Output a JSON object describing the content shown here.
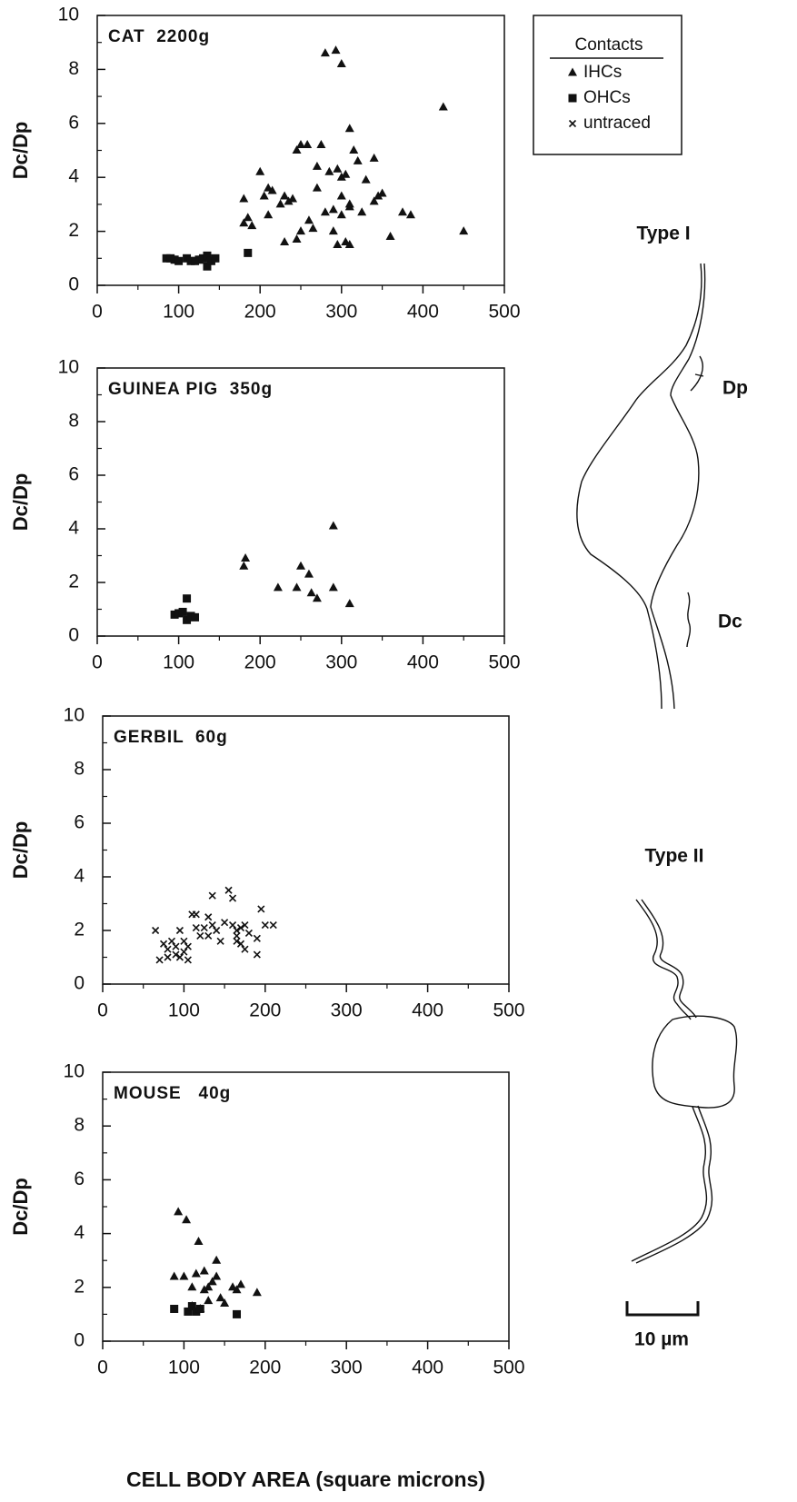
{
  "chart_data": [
    {
      "type": "scatter",
      "title": "CAT  2200g",
      "ylabel": "Dc/Dp",
      "xlim": [
        0,
        500
      ],
      "xticks": [
        0,
        100,
        200,
        300,
        400,
        500
      ],
      "xminorticks": [
        50,
        150,
        250,
        350,
        450
      ],
      "ylim": [
        0,
        10
      ],
      "yticks": [
        0,
        2,
        4,
        6,
        8,
        10
      ],
      "yminorticks": [
        1,
        3,
        5,
        7,
        9
      ],
      "series": [
        {
          "name": "IHCs",
          "marker": "triangle",
          "color": "#111111",
          "x": [
            280,
            293,
            300,
            425,
            310,
            250,
            258,
            245,
            275,
            315,
            340,
            200,
            295,
            305,
            285,
            300,
            330,
            320,
            270,
            210,
            215,
            205,
            180,
            230,
            235,
            240,
            225,
            270,
            300,
            310,
            345,
            350,
            375,
            385,
            340,
            290,
            280,
            300,
            310,
            185,
            190,
            210,
            260,
            265,
            250,
            245,
            230,
            290,
            295,
            305,
            310,
            360,
            450,
            325,
            180
          ],
          "values": [
            8.6,
            8.7,
            8.2,
            6.6,
            5.8,
            5.2,
            5.2,
            5.0,
            5.2,
            5.0,
            4.7,
            4.2,
            4.3,
            4.1,
            4.2,
            4.0,
            3.9,
            4.6,
            4.4,
            3.6,
            3.5,
            3.3,
            3.2,
            3.3,
            3.1,
            3.2,
            3.0,
            3.6,
            3.3,
            3.0,
            3.3,
            3.4,
            2.7,
            2.6,
            3.1,
            2.8,
            2.7,
            2.6,
            2.9,
            2.5,
            2.2,
            2.6,
            2.4,
            2.1,
            2.0,
            1.7,
            1.6,
            2.0,
            1.5,
            1.6,
            1.5,
            1.8,
            2.0,
            2.7,
            2.3
          ]
        },
        {
          "name": "OHCs",
          "marker": "square",
          "color": "#111111",
          "x": [
            85,
            90,
            95,
            100,
            110,
            115,
            120,
            125,
            130,
            135,
            135,
            140,
            145,
            185
          ],
          "values": [
            1.0,
            1.0,
            0.95,
            0.9,
            1.0,
            0.9,
            0.9,
            0.95,
            1.0,
            0.7,
            1.1,
            0.9,
            1.0,
            1.2
          ]
        }
      ]
    },
    {
      "type": "scatter",
      "title": "GUINEA PIG  350g",
      "ylabel": "Dc/Dp",
      "xlim": [
        0,
        500
      ],
      "xticks": [
        0,
        100,
        200,
        300,
        400,
        500
      ],
      "xminorticks": [
        50,
        150,
        250,
        350,
        450
      ],
      "ylim": [
        0,
        10
      ],
      "yticks": [
        0,
        2,
        4,
        6,
        8,
        10
      ],
      "yminorticks": [
        1,
        3,
        5,
        7,
        9
      ],
      "series": [
        {
          "name": "IHCs",
          "marker": "triangle",
          "color": "#111111",
          "x": [
            180,
            182,
            222,
            245,
            250,
            260,
            263,
            270,
            290,
            290,
            310
          ],
          "values": [
            2.6,
            2.9,
            1.8,
            1.8,
            2.6,
            2.3,
            1.6,
            1.4,
            1.8,
            4.1,
            1.2
          ]
        },
        {
          "name": "OHCs",
          "marker": "square",
          "color": "#111111",
          "x": [
            95,
            100,
            105,
            110,
            110,
            115,
            120
          ],
          "values": [
            0.8,
            0.85,
            0.9,
            1.4,
            0.6,
            0.75,
            0.7
          ]
        }
      ]
    },
    {
      "type": "scatter",
      "title": "GERBIL  60g",
      "ylabel": "Dc/Dp",
      "xlim": [
        0,
        500
      ],
      "xticks": [
        0,
        100,
        200,
        300,
        400,
        500
      ],
      "xminorticks": [
        50,
        150,
        250,
        350,
        450
      ],
      "ylim": [
        0,
        10
      ],
      "yticks": [
        0,
        2,
        4,
        6,
        8,
        10
      ],
      "yminorticks": [
        1,
        3,
        5,
        7,
        9
      ],
      "series": [
        {
          "name": "untraced",
          "marker": "cross",
          "color": "#111111",
          "x": [
            65,
            70,
            75,
            80,
            80,
            85,
            90,
            90,
            95,
            95,
            100,
            100,
            105,
            105,
            110,
            115,
            115,
            120,
            125,
            130,
            130,
            135,
            135,
            140,
            145,
            150,
            155,
            160,
            160,
            165,
            165,
            165,
            170,
            170,
            175,
            175,
            180,
            190,
            190,
            195,
            200,
            210
          ],
          "values": [
            2.0,
            0.9,
            1.5,
            1.3,
            1.0,
            1.6,
            1.1,
            1.4,
            1.0,
            2.0,
            1.6,
            1.2,
            0.9,
            1.4,
            2.6,
            2.1,
            2.6,
            1.8,
            2.1,
            2.5,
            1.8,
            3.3,
            2.2,
            2.0,
            1.6,
            2.3,
            3.5,
            3.2,
            2.2,
            1.8,
            2.0,
            1.6,
            2.1,
            1.5,
            2.2,
            1.3,
            1.9,
            1.7,
            1.1,
            2.8,
            2.2,
            2.2
          ]
        }
      ]
    },
    {
      "type": "scatter",
      "title": "MOUSE   40g",
      "ylabel": "Dc/Dp",
      "xlabel": "CELL BODY AREA (square microns)",
      "xlim": [
        0,
        500
      ],
      "xticks": [
        0,
        100,
        200,
        300,
        400,
        500
      ],
      "xminorticks": [
        50,
        150,
        250,
        350,
        450
      ],
      "ylim": [
        0,
        10
      ],
      "yticks": [
        0,
        2,
        4,
        6,
        8,
        10
      ],
      "yminorticks": [
        1,
        3,
        5,
        7,
        9
      ],
      "series": [
        {
          "name": "IHCs",
          "marker": "triangle",
          "color": "#111111",
          "x": [
            93,
            103,
            118,
            88,
            100,
            110,
            115,
            125,
            130,
            135,
            140,
            140,
            125,
            145,
            150,
            160,
            165,
            170,
            190,
            110,
            120,
            130
          ],
          "values": [
            4.8,
            4.5,
            3.7,
            2.4,
            2.4,
            2.0,
            2.5,
            2.6,
            2.0,
            2.2,
            3.0,
            2.4,
            1.9,
            1.6,
            1.4,
            2.0,
            1.9,
            2.1,
            1.8,
            1.3,
            1.2,
            1.5
          ]
        },
        {
          "name": "OHCs",
          "marker": "square",
          "color": "#111111",
          "x": [
            88,
            105,
            110,
            115,
            120,
            165
          ],
          "values": [
            1.2,
            1.1,
            1.3,
            1.1,
            1.2,
            1.0
          ]
        }
      ]
    }
  ],
  "legend_title": "Contacts",
  "diagrams": {
    "type_i": {
      "label": "Type I",
      "dp": "Dp",
      "dc": "Dc"
    },
    "type_ii": {
      "label": "Type II"
    },
    "scale_bar": "10 µm"
  }
}
